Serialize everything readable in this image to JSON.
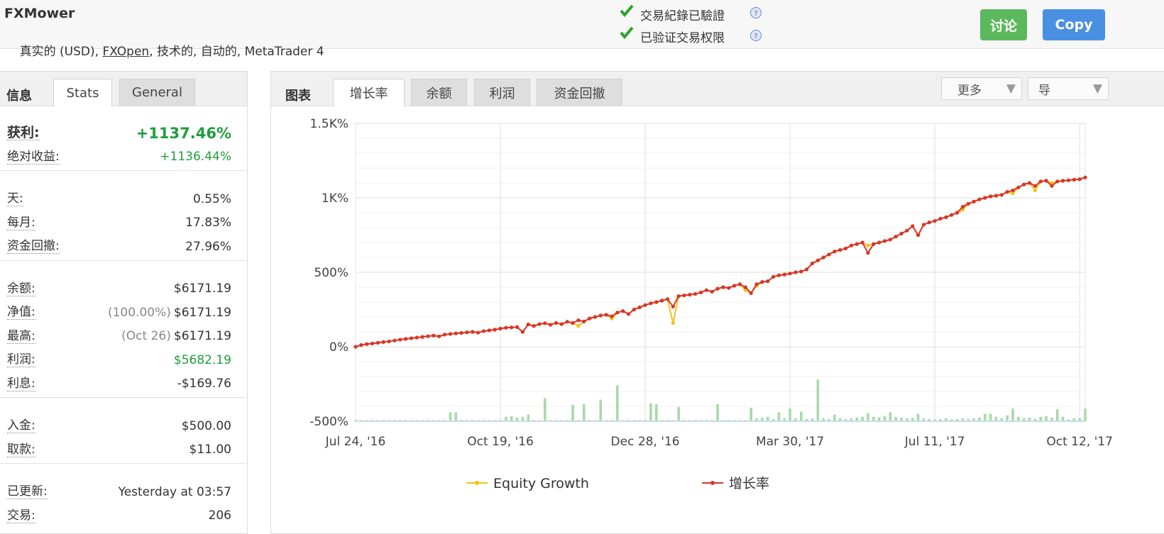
{
  "header": {
    "title": "FXMower",
    "account_info": [
      "真实的 (USD), ",
      "FXOpen",
      ", 技术的, 自动的, MetaTrader 4"
    ],
    "verifications": [
      "交易紀錄已驗證",
      "已验证交易权限"
    ],
    "buttons": [
      "讨论",
      "Copy"
    ]
  },
  "info_panel": {
    "tabs": [
      "信息",
      "Stats",
      "General"
    ],
    "groups": [
      [
        {
          "label": "获利:",
          "value": "+1137.46%",
          "color": "#1e9e3c"
        },
        {
          "label": "绝对收益:",
          "value": "+1136.44%",
          "color": "#1e9e3c"
        }
      ],
      [
        {
          "label": "天:",
          "value": "0.55%"
        },
        {
          "label": "每月:",
          "value": "17.83%"
        },
        {
          "label": "资金回撤:",
          "value": "27.96%"
        }
      ],
      [
        {
          "label": "余额:",
          "value": "$6171.19"
        },
        {
          "label": "净值:",
          "note": "(100.00%)",
          "value": "$6171.19"
        },
        {
          "label": "最高:",
          "note": "(Oct 26)",
          "value": "$6171.19"
        },
        {
          "label": "利润:",
          "value": "$5682.19",
          "color": "#1e9e3c"
        },
        {
          "label": "利息:",
          "value": "-$169.76"
        }
      ],
      [
        {
          "label": "入金:",
          "value": "$500.00"
        },
        {
          "label": "取款:",
          "value": "$11.00"
        }
      ],
      [
        {
          "label": "已更新:",
          "value": "Yesterday at 03:57"
        },
        {
          "label": "交易:",
          "value": "206"
        }
      ]
    ]
  },
  "chart_panel": {
    "tabs": [
      "图表",
      "增长率",
      "余额",
      "利润",
      "资金回撤"
    ],
    "menus": [
      "更多",
      "导"
    ]
  },
  "chart_data": {
    "type": "line",
    "xlim": [
      0,
      131
    ],
    "xticks": [
      {
        "value": 0,
        "label": "Jul 24, '16"
      },
      {
        "value": 26,
        "label": "Oct 19, '16"
      },
      {
        "value": 52,
        "label": "Dec 28, '16"
      },
      {
        "value": 78,
        "label": "Mar 30, '17"
      },
      {
        "value": 104,
        "label": "Jul 11, '17"
      },
      {
        "value": 130,
        "label": "Oct 12, '17"
      }
    ],
    "ylim": [
      -500,
      1500
    ],
    "yticks": [
      {
        "value": 1500,
        "label": "1.5K%"
      },
      {
        "value": 1000,
        "label": "1K%"
      },
      {
        "value": 500,
        "label": "500%"
      },
      {
        "value": 0,
        "label": "0%"
      },
      {
        "value": -500,
        "label": "-500%"
      }
    ],
    "grid": true,
    "series": [
      {
        "name": "Equity Growth",
        "color": "#f2c21b",
        "values": [
          0,
          12,
          18,
          22,
          27,
          32,
          36,
          42,
          48,
          53,
          57,
          62,
          66,
          71,
          75,
          70,
          82,
          86,
          90,
          93,
          97,
          100,
          95,
          105,
          110,
          115,
          122,
          128,
          130,
          132,
          100,
          150,
          140,
          152,
          158,
          148,
          160,
          152,
          168,
          160,
          140,
          170,
          190,
          200,
          210,
          215,
          190,
          230,
          240,
          220,
          250,
          265,
          280,
          292,
          300,
          310,
          320,
          160,
          340,
          345,
          350,
          355,
          365,
          380,
          370,
          390,
          400,
          395,
          410,
          420,
          380,
          360,
          410,
          435,
          440,
          470,
          480,
          485,
          492,
          500,
          505,
          520,
          560,
          580,
          600,
          620,
          640,
          650,
          660,
          680,
          690,
          700,
          680,
          690,
          700,
          710,
          720,
          740,
          760,
          780,
          810,
          750,
          820,
          835,
          845,
          860,
          870,
          885,
          900,
          920,
          960,
          975,
          990,
          1000,
          1010,
          1015,
          1020,
          1040,
          1030,
          1070,
          1090,
          1100,
          1050,
          1110,
          1115,
          1100,
          1110,
          1115,
          1118,
          1122,
          1125,
          1137
        ]
      },
      {
        "name": "增长率",
        "color": "#d9342b",
        "values": [
          0,
          12,
          18,
          22,
          27,
          32,
          36,
          42,
          48,
          53,
          57,
          62,
          66,
          71,
          75,
          70,
          82,
          86,
          90,
          93,
          97,
          100,
          95,
          105,
          110,
          115,
          122,
          128,
          130,
          132,
          100,
          150,
          140,
          152,
          158,
          148,
          160,
          152,
          168,
          160,
          178,
          170,
          190,
          200,
          210,
          215,
          205,
          230,
          240,
          220,
          250,
          265,
          280,
          292,
          300,
          310,
          320,
          270,
          340,
          345,
          350,
          355,
          365,
          380,
          370,
          390,
          400,
          395,
          410,
          420,
          400,
          360,
          420,
          435,
          440,
          470,
          480,
          485,
          492,
          500,
          505,
          520,
          560,
          580,
          600,
          620,
          640,
          650,
          660,
          680,
          690,
          700,
          630,
          690,
          700,
          710,
          720,
          740,
          760,
          780,
          810,
          750,
          820,
          835,
          845,
          860,
          870,
          885,
          900,
          940,
          960,
          975,
          990,
          1000,
          1010,
          1015,
          1020,
          1040,
          1050,
          1070,
          1090,
          1100,
          1080,
          1110,
          1115,
          1080,
          1110,
          1115,
          1118,
          1122,
          1125,
          1137
        ]
      }
    ],
    "bars": {
      "color": "#a9d9a9",
      "values": [
        -492,
        -492,
        -492,
        -492,
        -492,
        -492,
        -492,
        -492,
        -492,
        -492,
        -492,
        -492,
        -492,
        -492,
        -492,
        -492,
        -492,
        -440,
        -440,
        -492,
        -492,
        -492,
        -492,
        -492,
        -492,
        -492,
        -492,
        -470,
        -465,
        -475,
        -470,
        -455,
        -492,
        -492,
        -345,
        -492,
        -492,
        -492,
        -492,
        -390,
        -492,
        -385,
        -492,
        -492,
        -355,
        -492,
        -492,
        -260,
        -492,
        -492,
        -492,
        -492,
        -492,
        -380,
        -385,
        -492,
        -492,
        -492,
        -405,
        -492,
        -492,
        -492,
        -492,
        -492,
        -492,
        -385,
        -492,
        -492,
        -492,
        -492,
        -492,
        -410,
        -480,
        -475,
        -470,
        -485,
        -440,
        -480,
        -415,
        -480,
        -435,
        -485,
        -480,
        -220,
        -480,
        -485,
        -455,
        -480,
        -485,
        -480,
        -475,
        -470,
        -445,
        -470,
        -475,
        -465,
        -440,
        -470,
        -475,
        -480,
        -478,
        -450,
        -480,
        -485,
        -488,
        -485,
        -480,
        -488,
        -485,
        -480,
        -485,
        -480,
        -475,
        -450,
        -450,
        -470,
        -480,
        -460,
        -415,
        -470,
        -480,
        -475,
        -485,
        -470,
        -465,
        -475,
        -420,
        -470,
        -488,
        -480,
        -480,
        -415
      ]
    }
  }
}
